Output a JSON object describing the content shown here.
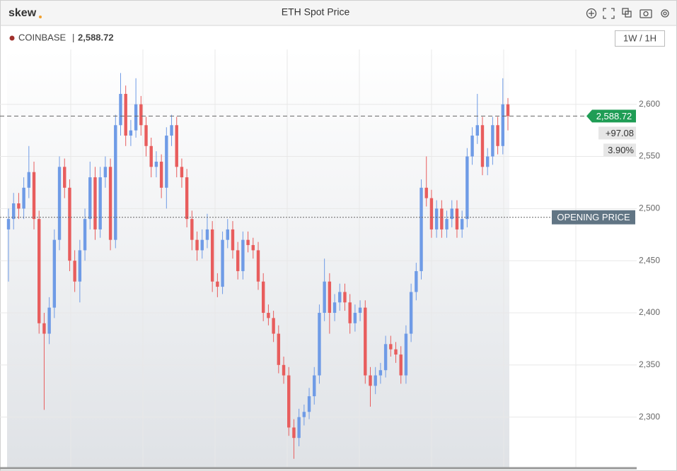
{
  "brand": "skew",
  "chart_data": {
    "type": "candlestick",
    "title": "ETH Spot Price",
    "source": "COINBASE",
    "interval": "1W / 1H",
    "up_color": "#6f9be6",
    "down_color": "#e85d5d",
    "price_line": {
      "value": 2588.72,
      "label": "2,588.72"
    },
    "change": {
      "value": 97.08,
      "label": "+97.08"
    },
    "change_pct": {
      "value": 3.9,
      "label": "3.90%"
    },
    "opening_price": {
      "value": 2491.64,
      "label": "OPENING PRICE"
    },
    "ylim": [
      2251,
      2675
    ],
    "yticks": [
      {
        "value": 2300,
        "label": "2,300"
      },
      {
        "value": 2350,
        "label": "2,350"
      },
      {
        "value": 2400,
        "label": "2,400"
      },
      {
        "value": 2450,
        "label": "2,450"
      },
      {
        "value": 2500,
        "label": "2,500"
      },
      {
        "value": 2550,
        "label": "2,550"
      },
      {
        "value": 2600,
        "label": "2,600"
      }
    ],
    "grid": true,
    "ohlc": [
      [
        2480,
        2500,
        2430,
        2490
      ],
      [
        2490,
        2515,
        2480,
        2505
      ],
      [
        2505,
        2515,
        2490,
        2500
      ],
      [
        2500,
        2530,
        2490,
        2520
      ],
      [
        2520,
        2560,
        2510,
        2535
      ],
      [
        2535,
        2545,
        2480,
        2490
      ],
      [
        2490,
        2498,
        2380,
        2390
      ],
      [
        2390,
        2400,
        2307,
        2380
      ],
      [
        2380,
        2415,
        2370,
        2405
      ],
      [
        2405,
        2480,
        2395,
        2470
      ],
      [
        2470,
        2550,
        2460,
        2540
      ],
      [
        2540,
        2548,
        2510,
        2520
      ],
      [
        2520,
        2528,
        2440,
        2450
      ],
      [
        2450,
        2460,
        2420,
        2430
      ],
      [
        2430,
        2470,
        2410,
        2460
      ],
      [
        2460,
        2500,
        2450,
        2490
      ],
      [
        2490,
        2545,
        2480,
        2530
      ],
      [
        2530,
        2540,
        2470,
        2480
      ],
      [
        2480,
        2540,
        2472,
        2530
      ],
      [
        2530,
        2550,
        2520,
        2540
      ],
      [
        2540,
        2548,
        2460,
        2470
      ],
      [
        2470,
        2590,
        2462,
        2580
      ],
      [
        2580,
        2630,
        2570,
        2610
      ],
      [
        2610,
        2618,
        2560,
        2570
      ],
      [
        2570,
        2585,
        2560,
        2575
      ],
      [
        2575,
        2625,
        2568,
        2600
      ],
      [
        2600,
        2608,
        2570,
        2580
      ],
      [
        2580,
        2588,
        2550,
        2560
      ],
      [
        2560,
        2568,
        2530,
        2540
      ],
      [
        2540,
        2555,
        2530,
        2545
      ],
      [
        2545,
        2552,
        2510,
        2520
      ],
      [
        2520,
        2578,
        2500,
        2570
      ],
      [
        2570,
        2590,
        2560,
        2580
      ],
      [
        2580,
        2588,
        2530,
        2540
      ],
      [
        2540,
        2548,
        2520,
        2530
      ],
      [
        2530,
        2538,
        2482,
        2490
      ],
      [
        2490,
        2498,
        2460,
        2470
      ],
      [
        2470,
        2478,
        2450,
        2460
      ],
      [
        2460,
        2480,
        2452,
        2470
      ],
      [
        2470,
        2495,
        2462,
        2480
      ],
      [
        2480,
        2488,
        2420,
        2430
      ],
      [
        2430,
        2438,
        2415,
        2425
      ],
      [
        2425,
        2478,
        2418,
        2470
      ],
      [
        2470,
        2490,
        2462,
        2480
      ],
      [
        2480,
        2488,
        2452,
        2460
      ],
      [
        2460,
        2468,
        2432,
        2440
      ],
      [
        2440,
        2478,
        2432,
        2470
      ],
      [
        2470,
        2478,
        2458,
        2465
      ],
      [
        2465,
        2472,
        2452,
        2460
      ],
      [
        2460,
        2468,
        2422,
        2430
      ],
      [
        2430,
        2438,
        2392,
        2400
      ],
      [
        2400,
        2408,
        2388,
        2395
      ],
      [
        2395,
        2402,
        2372,
        2380
      ],
      [
        2380,
        2388,
        2342,
        2350
      ],
      [
        2350,
        2358,
        2332,
        2340
      ],
      [
        2340,
        2348,
        2282,
        2290
      ],
      [
        2290,
        2298,
        2260,
        2280
      ],
      [
        2280,
        2308,
        2272,
        2300
      ],
      [
        2300,
        2312,
        2292,
        2305
      ],
      [
        2305,
        2328,
        2298,
        2320
      ],
      [
        2320,
        2348,
        2312,
        2340
      ],
      [
        2340,
        2408,
        2332,
        2400
      ],
      [
        2400,
        2452,
        2392,
        2430
      ],
      [
        2430,
        2438,
        2380,
        2400
      ],
      [
        2400,
        2418,
        2392,
        2410
      ],
      [
        2410,
        2428,
        2402,
        2420
      ],
      [
        2420,
        2428,
        2402,
        2410
      ],
      [
        2410,
        2418,
        2380,
        2390
      ],
      [
        2390,
        2408,
        2382,
        2400
      ],
      [
        2400,
        2412,
        2392,
        2405
      ],
      [
        2405,
        2412,
        2332,
        2340
      ],
      [
        2340,
        2348,
        2310,
        2330
      ],
      [
        2330,
        2348,
        2322,
        2340
      ],
      [
        2340,
        2352,
        2332,
        2345
      ],
      [
        2345,
        2378,
        2338,
        2370
      ],
      [
        2370,
        2378,
        2358,
        2365
      ],
      [
        2365,
        2372,
        2352,
        2360
      ],
      [
        2360,
        2368,
        2332,
        2340
      ],
      [
        2340,
        2388,
        2332,
        2380
      ],
      [
        2380,
        2428,
        2372,
        2420
      ],
      [
        2420,
        2448,
        2412,
        2440
      ],
      [
        2440,
        2528,
        2432,
        2520
      ],
      [
        2520,
        2550,
        2502,
        2510
      ],
      [
        2510,
        2518,
        2472,
        2480
      ],
      [
        2480,
        2508,
        2472,
        2500
      ],
      [
        2500,
        2508,
        2472,
        2480
      ],
      [
        2480,
        2498,
        2472,
        2490
      ],
      [
        2490,
        2508,
        2482,
        2500
      ],
      [
        2500,
        2508,
        2472,
        2480
      ],
      [
        2480,
        2498,
        2472,
        2490
      ],
      [
        2490,
        2558,
        2482,
        2550
      ],
      [
        2550,
        2578,
        2542,
        2570
      ],
      [
        2570,
        2610,
        2562,
        2580
      ],
      [
        2580,
        2588,
        2532,
        2540
      ],
      [
        2540,
        2558,
        2532,
        2550
      ],
      [
        2550,
        2588,
        2542,
        2580
      ],
      [
        2580,
        2588,
        2552,
        2560
      ],
      [
        2560,
        2625,
        2552,
        2600
      ],
      [
        2600,
        2606,
        2575,
        2588.72
      ]
    ]
  }
}
